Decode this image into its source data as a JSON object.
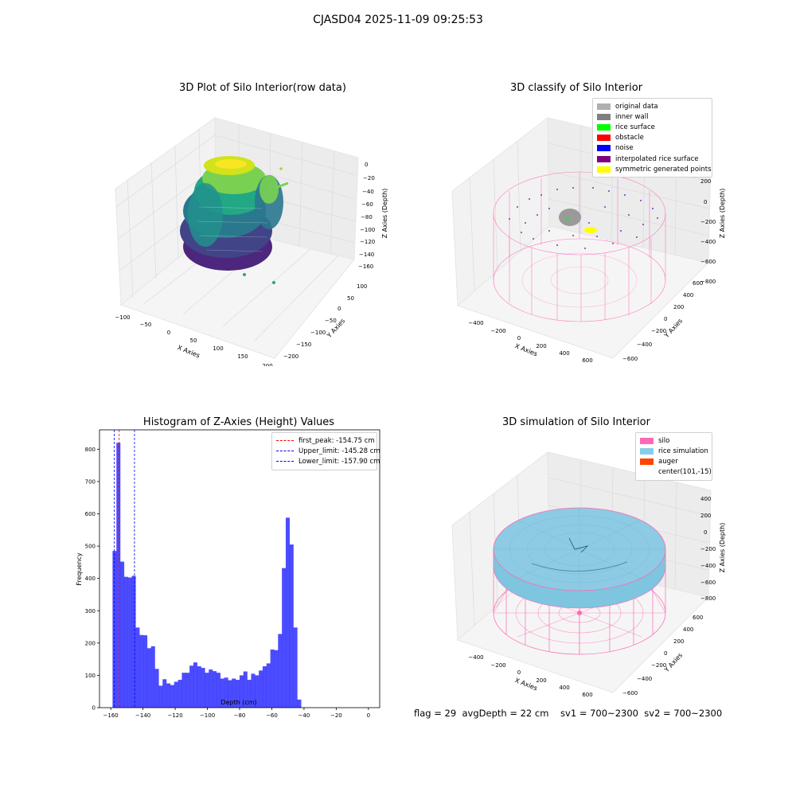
{
  "figure": {
    "suptitle": "CJASD04 2025-11-09 09:25:53",
    "status_text": "flag = 29  avgDepth = 22 cm    sv1 = 700~2300  sv2 = 700~2300"
  },
  "raw_plot": {
    "title": "3D Plot of Silo Interior(row data)",
    "xlabel": "X Axies",
    "ylabel": "Y Axies",
    "zlabel": "Z Axies (Depth)",
    "x_ticks": [
      "−100",
      "−50",
      "0",
      "50",
      "100",
      "150",
      "200"
    ],
    "y_ticks": [
      "−200",
      "−150",
      "−100",
      "−50",
      "0",
      "50",
      "100"
    ],
    "z_ticks": [
      "0",
      "−20",
      "−40",
      "−60",
      "−80",
      "−100",
      "−120",
      "−140",
      "−160"
    ]
  },
  "classify_plot": {
    "title": "3D classify of Silo Interior",
    "xlabel": "X Axies",
    "ylabel": "Y Axies",
    "zlabel": "Z Axies (Depth)",
    "x_ticks": [
      "−400",
      "−200",
      "0",
      "200",
      "400",
      "600"
    ],
    "y_ticks": [
      "−600",
      "−400",
      "−200",
      "0",
      "200",
      "400",
      "600"
    ],
    "z_ticks": [
      "200",
      "0",
      "−200",
      "−400",
      "−600",
      "−800"
    ],
    "legend": [
      {
        "label": "original data",
        "color": "#b0b0b0"
      },
      {
        "label": "inner wall",
        "color": "#808080"
      },
      {
        "label": "rice surface",
        "color": "#00ff00"
      },
      {
        "label": "obstacle",
        "color": "#ff0000"
      },
      {
        "label": "noise",
        "color": "#0000ff"
      },
      {
        "label": "interpolated rice surface",
        "color": "#800080"
      },
      {
        "label": "symmetric generated points",
        "color": "#ffff00"
      }
    ]
  },
  "sim_plot": {
    "title": "3D simulation of Silo Interior",
    "xlabel": "X Axies",
    "ylabel": "Y Axies",
    "zlabel": "Z Axies (Depth)",
    "x_ticks": [
      "−400",
      "−200",
      "0",
      "200",
      "400",
      "600"
    ],
    "y_ticks": [
      "−600",
      "−400",
      "−200",
      "0",
      "200",
      "400",
      "600"
    ],
    "z_ticks": [
      "400",
      "200",
      "0",
      "−200",
      "−400",
      "−600",
      "−800"
    ],
    "legend": [
      {
        "label": "silo",
        "color": "#ff69b4"
      },
      {
        "label": "rice simulation",
        "color": "#87ceeb"
      },
      {
        "label": "auger",
        "color": "#ff4500"
      },
      {
        "label": "center(101,-15)",
        "color": "#ffffff"
      }
    ]
  },
  "chart_data": {
    "type": "bar",
    "title": "Histogram of Z-Axies (Height) Values",
    "xlabel": "Depth (cm)",
    "ylabel": "Frequency",
    "xlim": [
      -167,
      7
    ],
    "ylim": [
      0,
      860
    ],
    "x_ticks": [
      -160,
      -140,
      -120,
      -100,
      -80,
      -60,
      -40,
      -20,
      0
    ],
    "x_tick_labels": [
      "−160",
      "−140",
      "−120",
      "−100",
      "−80",
      "−60",
      "−40",
      "−20",
      "0"
    ],
    "y_ticks": [
      0,
      100,
      200,
      300,
      400,
      500,
      600,
      700,
      800
    ],
    "y_tick_labels": [
      "0",
      "100",
      "200",
      "300",
      "400",
      "500",
      "600",
      "700",
      "800"
    ],
    "bar_color": "#0000ff",
    "bin_start": -158.9,
    "bin_width": 2.39,
    "values": [
      485,
      820,
      452,
      405,
      403,
      408,
      248,
      225,
      224,
      184,
      190,
      120,
      68,
      88,
      75,
      70,
      80,
      86,
      108,
      108,
      130,
      140,
      128,
      123,
      108,
      118,
      113,
      108,
      90,
      93,
      85,
      90,
      86,
      100,
      112,
      86,
      105,
      100,
      115,
      128,
      137,
      180,
      178,
      228,
      432,
      588,
      505,
      248,
      25
    ],
    "vlines": [
      {
        "label": "first_peak: -154.75 cm",
        "x": -154.75,
        "color": "#ff0000"
      },
      {
        "label": "Upper_limit: -145.28 cm",
        "x": -145.28,
        "color": "#0000ff"
      },
      {
        "label": "Lower_limit: -157.90 cm",
        "x": -157.9,
        "color": "#0000ff"
      }
    ],
    "legend_position": "upper right"
  }
}
